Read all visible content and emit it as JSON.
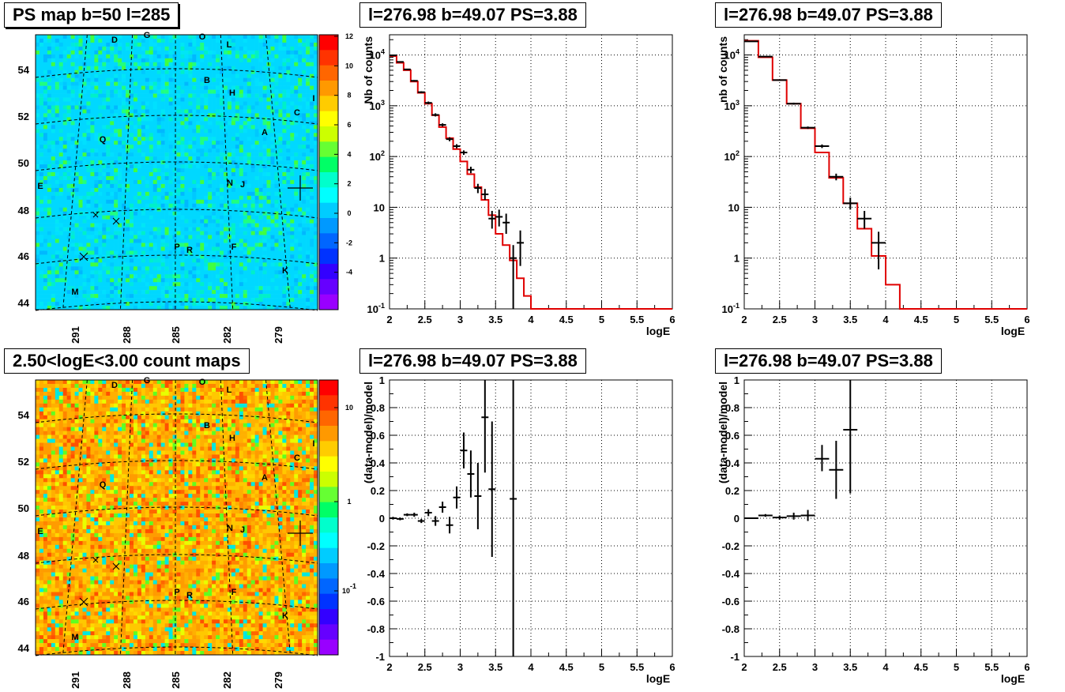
{
  "colors": {
    "red_model": "#e00000",
    "data_points": "#000000",
    "grid": "#000000"
  },
  "maps": [
    {
      "title": "PS map b=50 l=285",
      "palette": "cyan",
      "colorbar_labels": [
        "12",
        "10",
        "8",
        "6",
        "4",
        "2",
        "0",
        "-2",
        "-4"
      ],
      "colorbar_range": [
        -5,
        12
      ],
      "lat_labels": [
        "54",
        "52",
        "50",
        "48",
        "46",
        "44"
      ],
      "lon_labels": [
        "291",
        "288",
        "285",
        "282",
        "279"
      ],
      "sources": [
        "D",
        "G",
        "O",
        "L",
        "B",
        "H",
        "I",
        "C",
        "A",
        "Q",
        "E",
        "N",
        "J",
        "P",
        "R",
        "F",
        "K",
        "M"
      ]
    },
    {
      "title": "2.50<logE<3.00 count maps",
      "palette": "heat",
      "colorbar_labels": [
        "10",
        "1",
        "10-1"
      ],
      "lat_labels": [
        "54",
        "52",
        "50",
        "48",
        "46",
        "44"
      ],
      "lon_labels": [
        "291",
        "288",
        "285",
        "282",
        "279"
      ],
      "sources": [
        "D",
        "G",
        "O",
        "L",
        "B",
        "H",
        "I",
        "C",
        "A",
        "Q",
        "E",
        "N",
        "J",
        "P",
        "R",
        "F",
        "K",
        "M"
      ]
    }
  ],
  "chart_data": [
    {
      "type": "line",
      "title": "l=276.98 b=49.07 PS=3.88",
      "xlabel": "logE",
      "ylabel": "Nb of counts",
      "xlim": [
        2,
        6
      ],
      "ylim": [
        0.1,
        25000
      ],
      "yscale": "log",
      "grid": true,
      "x_ticks": [
        "2",
        "2.5",
        "3",
        "3.5",
        "4",
        "4.5",
        "5",
        "5.5",
        "6"
      ],
      "y_ticks": [
        "10-1",
        "1",
        "10",
        "102",
        "103",
        "104"
      ],
      "model_step": {
        "edges": [
          2.0,
          2.1,
          2.2,
          2.3,
          2.4,
          2.5,
          2.6,
          2.7,
          2.8,
          2.9,
          3.0,
          3.1,
          3.2,
          3.3,
          3.4,
          3.5,
          3.6,
          3.7,
          3.8,
          3.9,
          4.0,
          6.0
        ],
        "values": [
          9500,
          7000,
          5000,
          3000,
          1800,
          1100,
          650,
          380,
          230,
          140,
          80,
          45,
          25,
          14,
          7,
          3,
          1.8,
          0.9,
          0.4,
          0.18,
          0.1
        ]
      },
      "data_points": [
        {
          "x": 2.05,
          "y": 9800,
          "lo": 9600,
          "hi": 10000
        },
        {
          "x": 2.15,
          "y": 7300,
          "lo": 7100,
          "hi": 7500
        },
        {
          "x": 2.25,
          "y": 5200,
          "lo": 5050,
          "hi": 5350
        },
        {
          "x": 2.35,
          "y": 3100,
          "lo": 3000,
          "hi": 3200
        },
        {
          "x": 2.45,
          "y": 1850,
          "lo": 1770,
          "hi": 1930
        },
        {
          "x": 2.55,
          "y": 1140,
          "lo": 1070,
          "hi": 1210
        },
        {
          "x": 2.65,
          "y": 660,
          "lo": 615,
          "hi": 710
        },
        {
          "x": 2.75,
          "y": 420,
          "lo": 390,
          "hi": 450
        },
        {
          "x": 2.85,
          "y": 220,
          "lo": 200,
          "hi": 240
        },
        {
          "x": 2.95,
          "y": 160,
          "lo": 145,
          "hi": 175
        },
        {
          "x": 3.05,
          "y": 120,
          "lo": 108,
          "hi": 132
        },
        {
          "x": 3.15,
          "y": 55,
          "lo": 47,
          "hi": 63
        },
        {
          "x": 3.25,
          "y": 24,
          "lo": 19,
          "hi": 29
        },
        {
          "x": 3.35,
          "y": 18,
          "lo": 14,
          "hi": 23
        },
        {
          "x": 3.45,
          "y": 6,
          "lo": 3.8,
          "hi": 8.5
        },
        {
          "x": 3.55,
          "y": 6.5,
          "lo": 4.2,
          "hi": 9
        },
        {
          "x": 3.65,
          "y": 5,
          "lo": 3,
          "hi": 7.5
        },
        {
          "x": 3.75,
          "y": 1,
          "lo": 0.1,
          "hi": 1.8
        },
        {
          "x": 3.85,
          "y": 2,
          "lo": 0.7,
          "hi": 3.5
        }
      ]
    },
    {
      "type": "line",
      "title": "l=276.98 b=49.07 PS=3.88",
      "xlabel": "logE",
      "ylabel": "nb of counts",
      "xlim": [
        2,
        6
      ],
      "ylim": [
        0.1,
        25000
      ],
      "yscale": "log",
      "grid": true,
      "x_ticks": [
        "2",
        "2.5",
        "3",
        "3.5",
        "4",
        "4.5",
        "5",
        "5.5",
        "6"
      ],
      "y_ticks": [
        "10-1",
        "1",
        "10",
        "102",
        "103",
        "104"
      ],
      "model_step": {
        "edges": [
          2.0,
          2.2,
          2.4,
          2.6,
          2.8,
          3.0,
          3.2,
          3.4,
          3.6,
          3.8,
          4.0,
          4.2,
          6.0
        ],
        "values": [
          19000,
          9000,
          3200,
          1100,
          360,
          120,
          38,
          12,
          3.8,
          1.1,
          0.3,
          0.1
        ]
      },
      "data_points": [
        {
          "x": 2.1,
          "y": 18500,
          "lo": 18200,
          "hi": 18800
        },
        {
          "x": 2.3,
          "y": 9300,
          "lo": 9100,
          "hi": 9500
        },
        {
          "x": 2.5,
          "y": 3200,
          "lo": 3100,
          "hi": 3300
        },
        {
          "x": 2.7,
          "y": 1100,
          "lo": 1050,
          "hi": 1150
        },
        {
          "x": 2.9,
          "y": 370,
          "lo": 350,
          "hi": 390
        },
        {
          "x": 3.1,
          "y": 160,
          "lo": 147,
          "hi": 173
        },
        {
          "x": 3.3,
          "y": 40,
          "lo": 34,
          "hi": 46
        },
        {
          "x": 3.5,
          "y": 12,
          "lo": 9,
          "hi": 15.5
        },
        {
          "x": 3.7,
          "y": 6,
          "lo": 3.8,
          "hi": 8.5
        },
        {
          "x": 3.9,
          "y": 2,
          "lo": 0.6,
          "hi": 3.3
        }
      ]
    },
    {
      "type": "scatter",
      "title": "l=276.98 b=49.07 PS=3.88",
      "xlabel": "logE",
      "ylabel": "(data-model)/model",
      "xlim": [
        2,
        6
      ],
      "ylim": [
        -1,
        1
      ],
      "grid": true,
      "x_ticks": [
        "2",
        "2.5",
        "3",
        "3.5",
        "4",
        "4.5",
        "5",
        "5.5",
        "6"
      ],
      "y_ticks": [
        "-1",
        "-0.8",
        "-0.6",
        "-0.4",
        "-0.2",
        "0",
        "0.2",
        "0.4",
        "0.6",
        "0.8",
        "1"
      ],
      "data_points": [
        {
          "x": 2.05,
          "y": 0.0,
          "lo": -0.01,
          "hi": 0.01
        },
        {
          "x": 2.15,
          "y": -0.005,
          "lo": -0.015,
          "hi": 0.005
        },
        {
          "x": 2.25,
          "y": 0.025,
          "lo": 0.015,
          "hi": 0.035
        },
        {
          "x": 2.35,
          "y": 0.025,
          "lo": 0.01,
          "hi": 0.04
        },
        {
          "x": 2.45,
          "y": -0.02,
          "lo": -0.035,
          "hi": -0.005
        },
        {
          "x": 2.55,
          "y": 0.04,
          "lo": 0.015,
          "hi": 0.065
        },
        {
          "x": 2.65,
          "y": -0.02,
          "lo": -0.055,
          "hi": 0.015
        },
        {
          "x": 2.75,
          "y": 0.08,
          "lo": 0.04,
          "hi": 0.12
        },
        {
          "x": 2.85,
          "y": -0.05,
          "lo": -0.11,
          "hi": 0.01
        },
        {
          "x": 2.95,
          "y": 0.15,
          "lo": 0.07,
          "hi": 0.23
        },
        {
          "x": 3.05,
          "y": 0.49,
          "lo": 0.36,
          "hi": 0.62
        },
        {
          "x": 3.15,
          "y": 0.32,
          "lo": 0.15,
          "hi": 0.49
        },
        {
          "x": 3.25,
          "y": 0.16,
          "lo": -0.08,
          "hi": 0.4
        },
        {
          "x": 3.35,
          "y": 0.73,
          "lo": 0.33,
          "hi": 1.0
        },
        {
          "x": 3.45,
          "y": 0.21,
          "lo": -0.28,
          "hi": 0.7
        },
        {
          "x": 3.75,
          "y": 0.14,
          "lo": -1.0,
          "hi": 1.0
        }
      ]
    },
    {
      "type": "scatter",
      "title": "l=276.98 b=49.07 PS=3.88",
      "xlabel": "logE",
      "ylabel": "(data-model)/model",
      "xlim": [
        2,
        6
      ],
      "ylim": [
        -1,
        1
      ],
      "grid": true,
      "x_ticks": [
        "2",
        "2.5",
        "3",
        "3.5",
        "4",
        "4.5",
        "5",
        "5.5",
        "6"
      ],
      "y_ticks": [
        "-1",
        "-0.8",
        "-0.6",
        "-0.4",
        "-0.2",
        "0",
        "0.2",
        "0.4",
        "0.6",
        "0.8",
        "1"
      ],
      "data_points": [
        {
          "x": 2.1,
          "y": 0.0,
          "lo": -0.005,
          "hi": 0.005
        },
        {
          "x": 2.3,
          "y": 0.02,
          "lo": 0.01,
          "hi": 0.03
        },
        {
          "x": 2.5,
          "y": 0.005,
          "lo": -0.01,
          "hi": 0.02
        },
        {
          "x": 2.7,
          "y": 0.015,
          "lo": -0.01,
          "hi": 0.04
        },
        {
          "x": 2.9,
          "y": 0.02,
          "lo": -0.02,
          "hi": 0.06
        },
        {
          "x": 3.1,
          "y": 0.43,
          "lo": 0.34,
          "hi": 0.53
        },
        {
          "x": 3.3,
          "y": 0.35,
          "lo": 0.14,
          "hi": 0.56
        },
        {
          "x": 3.5,
          "y": 0.64,
          "lo": 0.18,
          "hi": 1.0
        }
      ]
    }
  ]
}
